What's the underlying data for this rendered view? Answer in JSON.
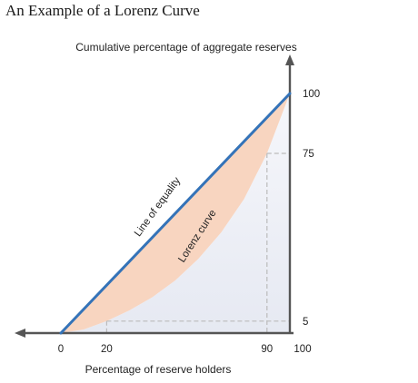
{
  "page_title": "An Example of a Lorenz Curve",
  "chart_data": {
    "type": "line",
    "title": "An Example of a Lorenz Curve",
    "xlabel": "Percentage of reserve holders",
    "ylabel": "Cumulative percentage of aggregate reserves",
    "xlim": [
      0,
      100
    ],
    "ylim": [
      0,
      100
    ],
    "x_ticks": [
      {
        "value": 0,
        "label": "0"
      },
      {
        "value": 20,
        "label": "20"
      },
      {
        "value": 90,
        "label": "90"
      },
      {
        "value": 100,
        "label": "100"
      }
    ],
    "y_ticks": [
      {
        "value": 5,
        "label": "5"
      },
      {
        "value": 75,
        "label": "75"
      },
      {
        "value": 100,
        "label": "100"
      }
    ],
    "reference_points": [
      {
        "x": 20,
        "y": 5
      },
      {
        "x": 90,
        "y": 75
      }
    ],
    "series": [
      {
        "name": "Line of equality",
        "x": [
          0,
          100
        ],
        "y": [
          0,
          100
        ],
        "color": "#3473b8"
      },
      {
        "name": "Lorenz curve",
        "x": [
          0,
          10,
          20,
          30,
          40,
          50,
          60,
          70,
          80,
          90,
          100
        ],
        "y": [
          0,
          1.5,
          5,
          9.5,
          15,
          22,
          31,
          42,
          56,
          75,
          100
        ],
        "color": "#f6cfb8"
      }
    ],
    "colors": {
      "equality_line": "#3473b8",
      "lorenz_fill": "#f8d5c0",
      "under_curve_fill": "#eef0f6",
      "axis": "#555555",
      "guide_lines": "#bbbbbb"
    },
    "grid": false
  }
}
